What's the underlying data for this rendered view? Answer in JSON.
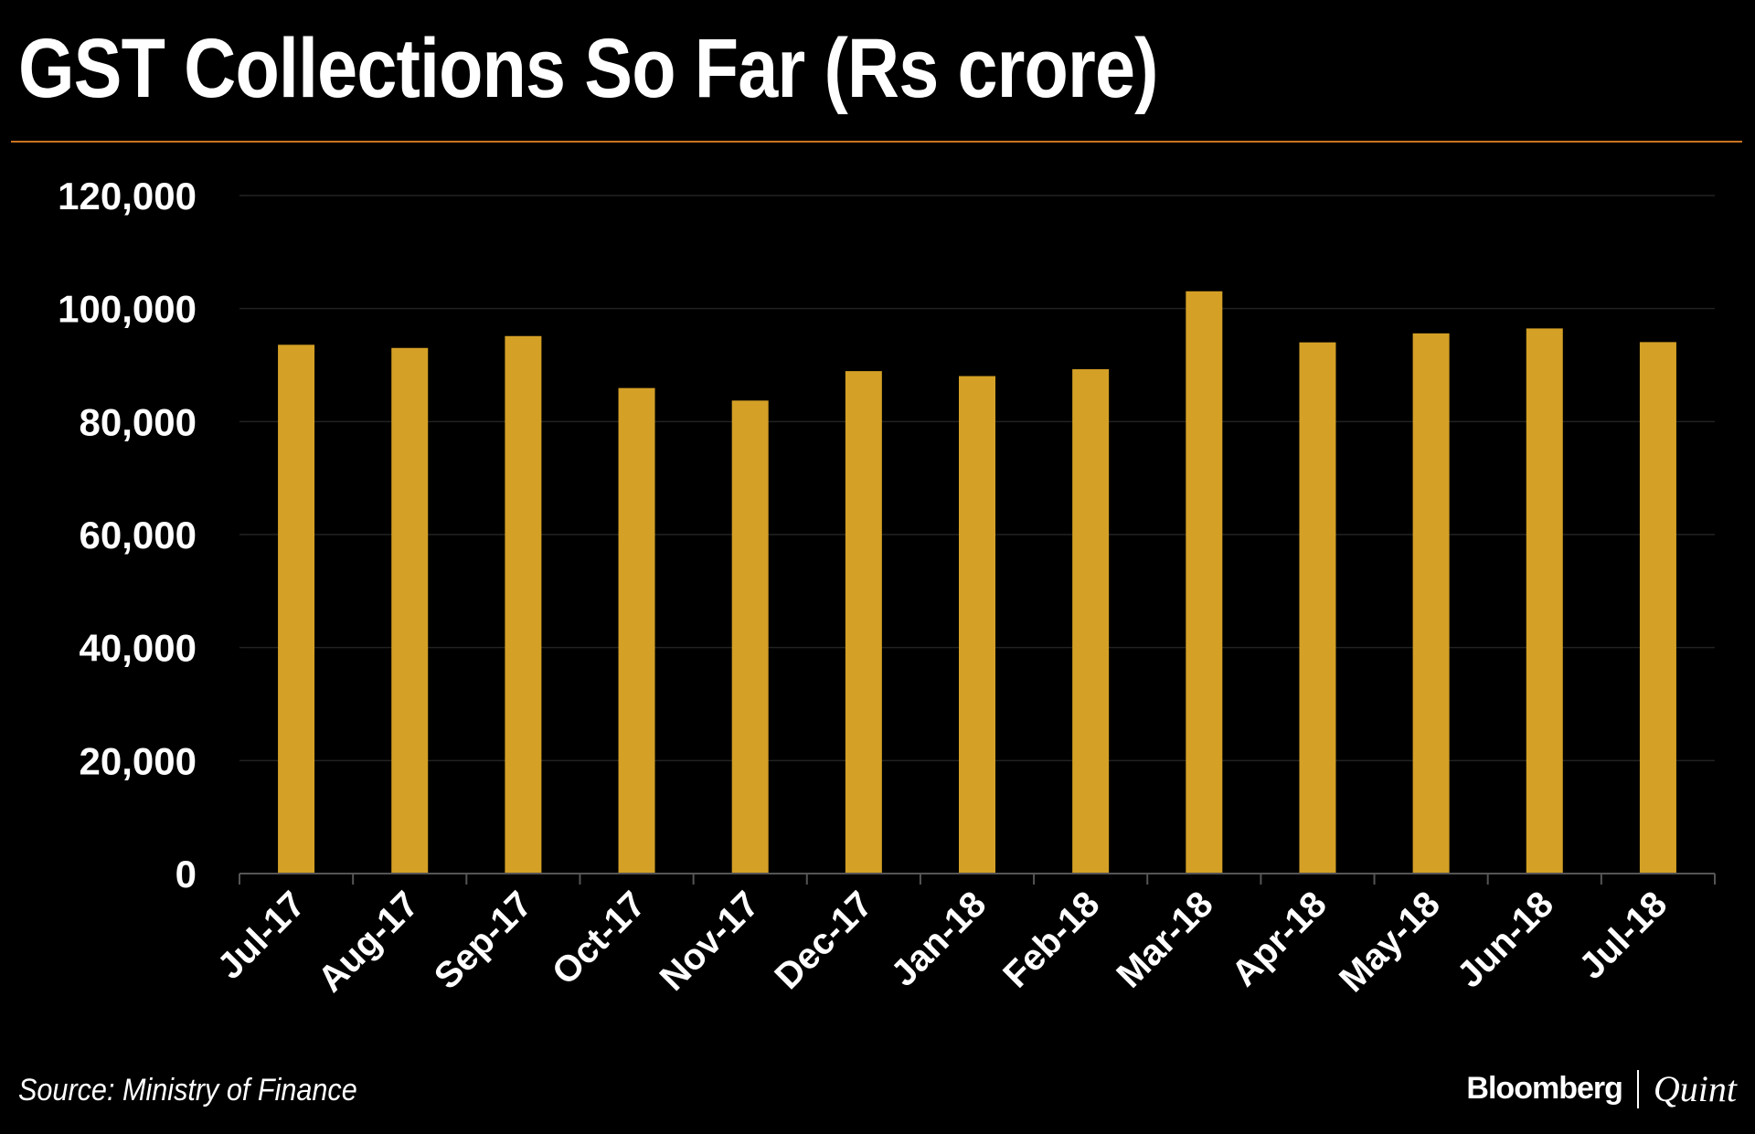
{
  "colors": {
    "background": "#000000",
    "text": "#ffffff",
    "bar": "#d4a026",
    "rule": "#c8731f",
    "grid": "#222222",
    "axis": "#555555"
  },
  "title": "GST Collections So Far (Rs crore)",
  "footer": {
    "source": "Source: Ministry of Finance",
    "brand_left": "Bloomberg",
    "brand_right": "Quint"
  },
  "chart_data": {
    "type": "bar",
    "title": "GST Collections So Far (Rs crore)",
    "xlabel": "",
    "ylabel": "",
    "categories": [
      "Jul-17",
      "Aug-17",
      "Sep-17",
      "Oct-17",
      "Nov-17",
      "Dec-17",
      "Jan-18",
      "Feb-18",
      "Mar-18",
      "Apr-18",
      "May-18",
      "Jun-18",
      "Jul-18"
    ],
    "series": [
      {
        "name": "GST Collections",
        "values": [
          93590,
          93029,
          95132,
          85931,
          83716,
          88929,
          88047,
          89264,
          103058,
          94016,
          95610,
          96483,
          94063
        ]
      }
    ],
    "ylim": [
      0,
      120000
    ],
    "yticks": [
      0,
      20000,
      40000,
      60000,
      80000,
      100000,
      120000
    ],
    "ytick_labels": [
      "0",
      "20,000",
      "40,000",
      "60,000",
      "80,000",
      "100,000",
      "120,000"
    ],
    "grid": true
  }
}
